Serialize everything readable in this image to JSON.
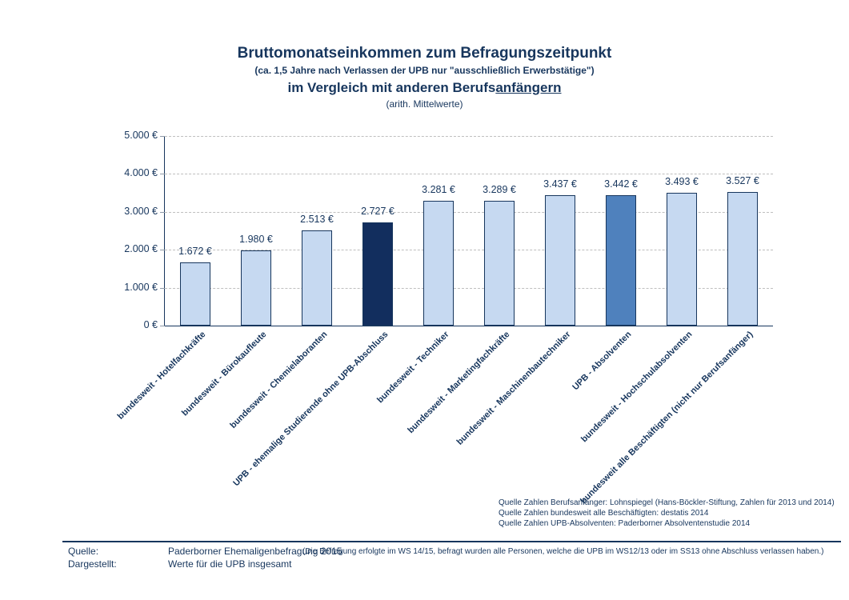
{
  "title": {
    "line1": "Bruttomonatseinkommen zum Befragungszeitpunkt",
    "line2": "(ca. 1,5 Jahre nach Verlassen der UPB nur \"ausschließlich Erwerbstätige\")",
    "line3_prefix": "im Vergleich mit anderen Berufs",
    "line3_underline": "anfängern",
    "line4": "(arith. Mittelwerte)"
  },
  "chart_data": {
    "type": "bar",
    "title": "Bruttomonatseinkommen zum Befragungszeitpunkt",
    "categories": [
      "bundesweit - Hotelfachkräfte",
      "bundesweit - Bürokaufleute",
      "bundesweit - Chemielaboranten",
      "UPB - ehemalige Studierende ohne UPB-Abschluss",
      "bundesweit - Techniker",
      "bundesweit - Marketingfachkräfte",
      "bundesweit - Maschinenbautechniker",
      "UPB - Absolventen",
      "bundesweit - Hochschulabsolventen",
      "bundesweit alle Beschäftigten (nicht nur Berufsanfänger)"
    ],
    "values": [
      1672,
      1980,
      2513,
      2727,
      3281,
      3289,
      3437,
      3442,
      3493,
      3527
    ],
    "value_labels": [
      "1.672 €",
      "1.980 €",
      "2.513 €",
      "2.727 €",
      "3.281 €",
      "3.289 €",
      "3.437 €",
      "3.442 €",
      "3.493 €",
      "3.527 €"
    ],
    "bar_colors": [
      "light",
      "light",
      "light",
      "dark",
      "light",
      "light",
      "light",
      "medium",
      "light",
      "light"
    ],
    "colors": {
      "light": "#C6D9F1",
      "dark": "#122E5E",
      "medium": "#4F81BD",
      "border": "#17365D"
    },
    "ylim": [
      0,
      5000
    ],
    "yticks": [
      0,
      1000,
      2000,
      3000,
      4000,
      5000
    ],
    "ytick_labels": [
      "0 €",
      "1.000 €",
      "2.000 €",
      "3.000 €",
      "4.000 €",
      "5.000 €"
    ],
    "grid": "horizontal-dashed",
    "legend": "none"
  },
  "source_notes": [
    "Quelle Zahlen Berufsanfänger: Lohnspiegel (Hans-Böckler-Stiftung, Zahlen für 2013 und 2014)",
    "Quelle Zahlen bundesweit alle Beschäftigten: destatis 2014",
    "Quelle Zahlen UPB-Absolventen: Paderborner Absolventenstudie 2014"
  ],
  "footer": {
    "quelle_label": "Quelle:",
    "quelle_value": "Paderborner Ehemaligenbefragung 2015",
    "quelle_note": "(Die Befragung erfolgte im WS 14/15, befragt wurden alle Personen, welche die UPB im WS12/13 oder im SS13 ohne Abschluss verlassen haben.)",
    "dargestellt_label": "Dargestellt:",
    "dargestellt_value": "Werte für die UPB insgesamt"
  }
}
